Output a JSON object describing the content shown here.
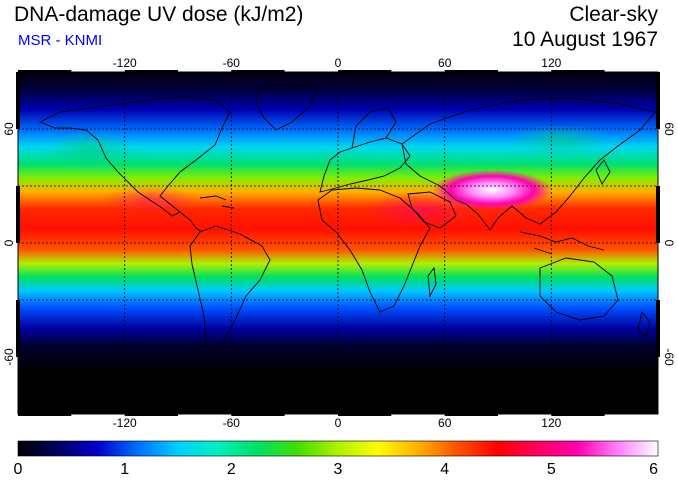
{
  "header": {
    "title": "DNA-damage UV dose (kJ/m2)",
    "subtitle": "MSR - KNMI",
    "condition": "Clear-sky",
    "date": "10 August 1967"
  },
  "colors": {
    "subtitle": "#0000ff"
  },
  "map": {
    "lon_ticks": [
      "-120",
      "-60",
      "0",
      "60",
      "120"
    ],
    "lat_ticks": [
      "60",
      "0",
      "-60"
    ]
  },
  "colorbar": {
    "ticks": [
      "0",
      "1",
      "2",
      "3",
      "4",
      "5",
      "6"
    ],
    "colors": [
      "#000000",
      "#000060",
      "#0000d0",
      "#0070ff",
      "#00d0ff",
      "#00f0c0",
      "#00e060",
      "#40e000",
      "#b0f000",
      "#ffff00",
      "#ffb000",
      "#ff5000",
      "#ff0000",
      "#ff0060",
      "#ff00b0",
      "#ff80ff",
      "#ffffff"
    ]
  }
}
